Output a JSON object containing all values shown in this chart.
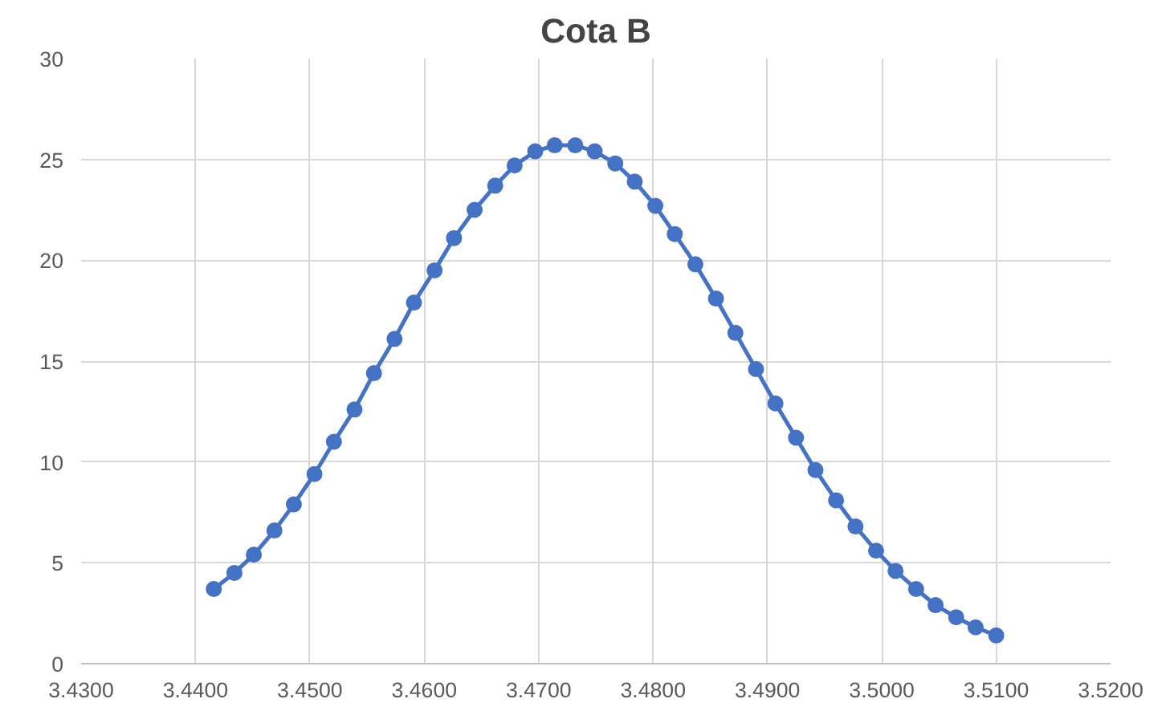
{
  "chart_data": {
    "type": "line",
    "title": "Cota B",
    "x": [
      3.4416,
      3.4434,
      3.4451,
      3.4469,
      3.4486,
      3.4504,
      3.4521,
      3.4539,
      3.4556,
      3.4574,
      3.4591,
      3.4609,
      3.4626,
      3.4644,
      3.4662,
      3.4679,
      3.4697,
      3.4714,
      3.4732,
      3.4749,
      3.4767,
      3.4784,
      3.4802,
      3.4819,
      3.4837,
      3.4855,
      3.4872,
      3.489,
      3.4907,
      3.4925,
      3.4942,
      3.496,
      3.4977,
      3.4995,
      3.5012,
      3.503,
      3.5047,
      3.5065,
      3.5082,
      3.51
    ],
    "series": [
      {
        "color": "#4472c4",
        "values": [
          3.7,
          4.5,
          5.4,
          6.6,
          7.9,
          9.4,
          11.0,
          12.6,
          14.4,
          16.1,
          17.9,
          19.5,
          21.1,
          22.5,
          23.7,
          24.7,
          25.4,
          25.7,
          25.7,
          25.4,
          24.8,
          23.9,
          22.7,
          21.3,
          19.8,
          18.1,
          16.4,
          14.6,
          12.9,
          11.2,
          9.6,
          8.1,
          6.8,
          5.6,
          4.6,
          3.7,
          2.9,
          2.3,
          1.8,
          1.4
        ]
      }
    ],
    "xlim": [
      3.43,
      3.52
    ],
    "xticks": [
      {
        "value": 3.43,
        "label": "3.4300"
      },
      {
        "value": 3.44,
        "label": "3.4400"
      },
      {
        "value": 3.45,
        "label": "3.4500"
      },
      {
        "value": 3.46,
        "label": "3.4600"
      },
      {
        "value": 3.47,
        "label": "3.4700"
      },
      {
        "value": 3.48,
        "label": "3.4800"
      },
      {
        "value": 3.49,
        "label": "3.4900"
      },
      {
        "value": 3.5,
        "label": "3.5000"
      },
      {
        "value": 3.51,
        "label": "3.5100"
      },
      {
        "value": 3.52,
        "label": "3.5200"
      }
    ],
    "ylim": [
      0,
      30
    ],
    "yticks": [
      0,
      5,
      10,
      15,
      20,
      25,
      30
    ],
    "grid": true,
    "marker": "circle",
    "line_style": "solid"
  }
}
